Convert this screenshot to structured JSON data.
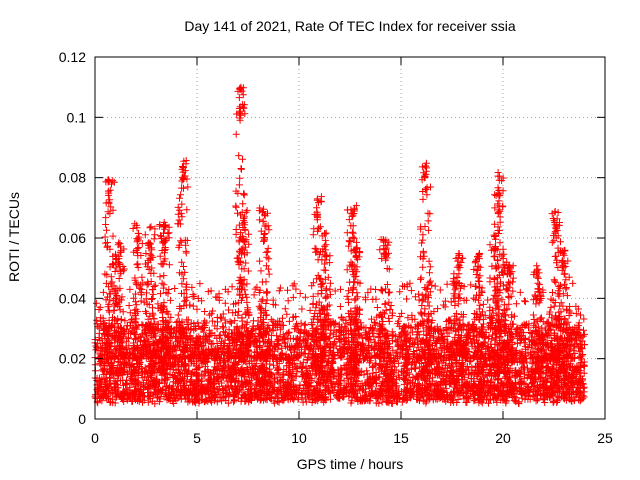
{
  "chart_data": {
    "type": "scatter",
    "title": "Day 141 of 2021, Rate Of TEC Index for receiver ssia",
    "xlabel": "GPS time / hours",
    "ylabel": "ROTI / TECUs",
    "xlim": [
      0,
      25
    ],
    "ylim": [
      0,
      0.12
    ],
    "xticks": [
      0,
      5,
      10,
      15,
      20,
      25
    ],
    "xtick_labels": [
      "0",
      "5",
      "10",
      "15",
      "20",
      "25"
    ],
    "yticks": [
      0,
      0.02,
      0.04,
      0.06,
      0.08,
      0.1,
      0.12
    ],
    "ytick_labels": [
      "0",
      "0.02",
      "0.04",
      "0.06",
      "0.08",
      "0.1",
      "0.12"
    ],
    "grid": true,
    "marker": "+",
    "color": "#ff0000",
    "data_range_hours": [
      0,
      24
    ],
    "baseline_band": [
      0.005,
      0.03
    ],
    "series": [
      {
        "name": "ROTI",
        "peaks": [
          {
            "x": 0.7,
            "y": 0.08
          },
          {
            "x": 1.2,
            "y": 0.059
          },
          {
            "x": 2.1,
            "y": 0.065
          },
          {
            "x": 2.7,
            "y": 0.064
          },
          {
            "x": 3.4,
            "y": 0.066
          },
          {
            "x": 4.3,
            "y": 0.088
          },
          {
            "x": 7.1,
            "y": 0.11
          },
          {
            "x": 7.3,
            "y": 0.07
          },
          {
            "x": 8.3,
            "y": 0.07
          },
          {
            "x": 10.9,
            "y": 0.074
          },
          {
            "x": 11.3,
            "y": 0.062
          },
          {
            "x": 12.6,
            "y": 0.071
          },
          {
            "x": 12.8,
            "y": 0.057
          },
          {
            "x": 14.2,
            "y": 0.06
          },
          {
            "x": 16.2,
            "y": 0.087
          },
          {
            "x": 17.8,
            "y": 0.055
          },
          {
            "x": 18.8,
            "y": 0.055
          },
          {
            "x": 19.6,
            "y": 0.064
          },
          {
            "x": 19.8,
            "y": 0.082
          },
          {
            "x": 20.3,
            "y": 0.052
          },
          {
            "x": 21.7,
            "y": 0.052
          },
          {
            "x": 22.6,
            "y": 0.069
          },
          {
            "x": 23.0,
            "y": 0.057
          }
        ]
      }
    ]
  }
}
